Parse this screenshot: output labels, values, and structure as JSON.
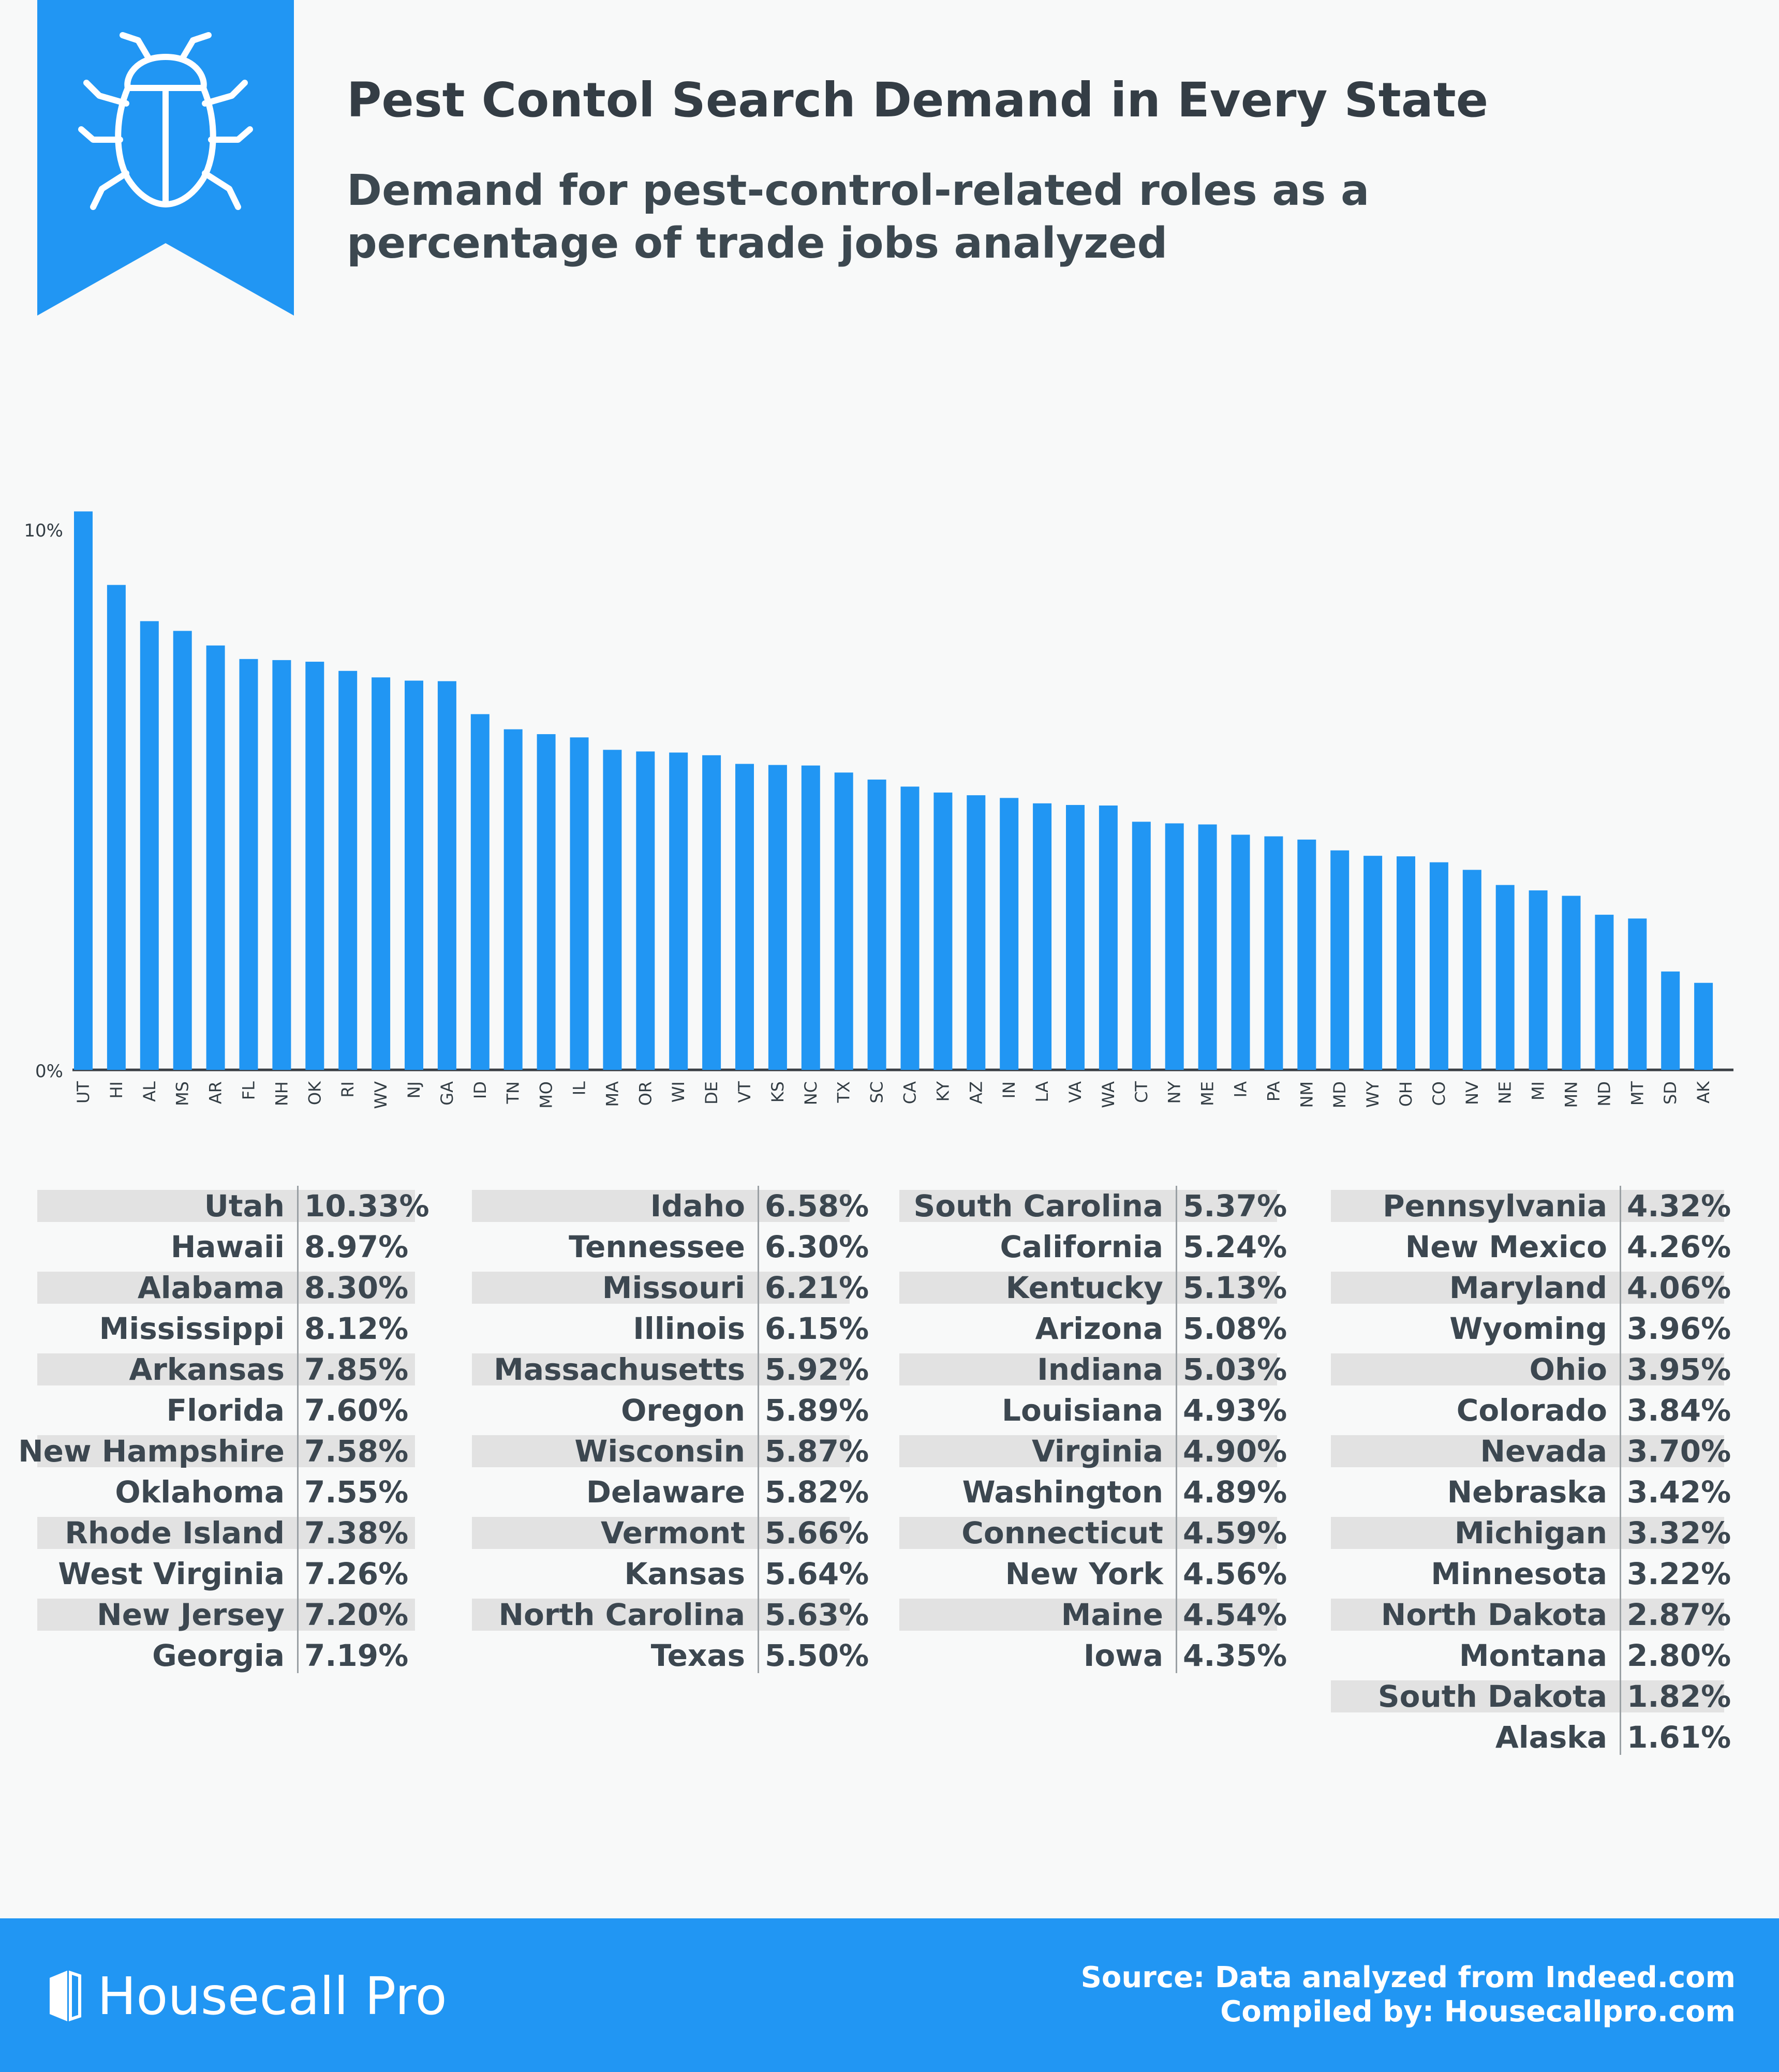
{
  "header": {
    "title": "Pest Contol Search Demand in Every State",
    "subtitle": "Demand for pest-control-related roles as a percentage of trade jobs analyzed",
    "icon": "bug-icon",
    "accent_color": "#2196f3"
  },
  "chart_data": {
    "type": "bar",
    "title": "Pest Contol Search Demand in Every State",
    "xlabel": "",
    "ylabel": "",
    "ylim": [
      0,
      10
    ],
    "yticks": [
      "0%",
      "10%"
    ],
    "bar_color": "#2196f3",
    "categories": [
      "UT",
      "HI",
      "AL",
      "MS",
      "AR",
      "FL",
      "NH",
      "OK",
      "RI",
      "WV",
      "NJ",
      "GA",
      "ID",
      "TN",
      "MO",
      "IL",
      "MA",
      "OR",
      "WI",
      "DE",
      "VT",
      "KS",
      "NC",
      "TX",
      "SC",
      "CA",
      "KY",
      "AZ",
      "IN",
      "LA",
      "VA",
      "WA",
      "CT",
      "NY",
      "ME",
      "IA",
      "PA",
      "NM",
      "MD",
      "WY",
      "OH",
      "CO",
      "NV",
      "NE",
      "MI",
      "MN",
      "ND",
      "MT",
      "SD",
      "AK"
    ],
    "values": [
      10.33,
      8.97,
      8.3,
      8.12,
      7.85,
      7.6,
      7.58,
      7.55,
      7.38,
      7.26,
      7.2,
      7.19,
      6.58,
      6.3,
      6.21,
      6.15,
      5.92,
      5.89,
      5.87,
      5.82,
      5.66,
      5.64,
      5.63,
      5.5,
      5.37,
      5.24,
      5.13,
      5.08,
      5.03,
      4.93,
      4.9,
      4.89,
      4.59,
      4.56,
      4.54,
      4.35,
      4.32,
      4.26,
      4.06,
      3.96,
      3.95,
      3.84,
      3.7,
      3.42,
      3.32,
      3.22,
      2.87,
      2.8,
      1.82,
      1.61
    ]
  },
  "table": {
    "columns": [
      [
        {
          "state": "Utah",
          "pct": "10.33%"
        },
        {
          "state": "Hawaii",
          "pct": "8.97%"
        },
        {
          "state": "Alabama",
          "pct": "8.30%"
        },
        {
          "state": "Mississippi",
          "pct": "8.12%"
        },
        {
          "state": "Arkansas",
          "pct": "7.85%"
        },
        {
          "state": "Florida",
          "pct": "7.60%"
        },
        {
          "state": "New Hampshire",
          "pct": "7.58%"
        },
        {
          "state": "Oklahoma",
          "pct": "7.55%"
        },
        {
          "state": "Rhode Island",
          "pct": "7.38%"
        },
        {
          "state": "West Virginia",
          "pct": "7.26%"
        },
        {
          "state": "New Jersey",
          "pct": "7.20%"
        },
        {
          "state": "Georgia",
          "pct": "7.19%"
        }
      ],
      [
        {
          "state": "Idaho",
          "pct": "6.58%"
        },
        {
          "state": "Tennessee",
          "pct": "6.30%"
        },
        {
          "state": "Missouri",
          "pct": "6.21%"
        },
        {
          "state": "Illinois",
          "pct": "6.15%"
        },
        {
          "state": "Massachusetts",
          "pct": "5.92%"
        },
        {
          "state": "Oregon",
          "pct": "5.89%"
        },
        {
          "state": "Wisconsin",
          "pct": "5.87%"
        },
        {
          "state": "Delaware",
          "pct": "5.82%"
        },
        {
          "state": "Vermont",
          "pct": "5.66%"
        },
        {
          "state": "Kansas",
          "pct": "5.64%"
        },
        {
          "state": "North Carolina",
          "pct": "5.63%"
        },
        {
          "state": "Texas",
          "pct": "5.50%"
        }
      ],
      [
        {
          "state": "South Carolina",
          "pct": "5.37%"
        },
        {
          "state": "California",
          "pct": "5.24%"
        },
        {
          "state": "Kentucky",
          "pct": "5.13%"
        },
        {
          "state": "Arizona",
          "pct": "5.08%"
        },
        {
          "state": "Indiana",
          "pct": "5.03%"
        },
        {
          "state": "Louisiana",
          "pct": "4.93%"
        },
        {
          "state": "Virginia",
          "pct": "4.90%"
        },
        {
          "state": "Washington",
          "pct": "4.89%"
        },
        {
          "state": "Connecticut",
          "pct": "4.59%"
        },
        {
          "state": "New York",
          "pct": "4.56%"
        },
        {
          "state": "Maine",
          "pct": "4.54%"
        },
        {
          "state": "Iowa",
          "pct": "4.35%"
        }
      ],
      [
        {
          "state": "Pennsylvania",
          "pct": "4.32%"
        },
        {
          "state": "New Mexico",
          "pct": "4.26%"
        },
        {
          "state": "Maryland",
          "pct": "4.06%"
        },
        {
          "state": "Wyoming",
          "pct": "3.96%"
        },
        {
          "state": "Ohio",
          "pct": "3.95%"
        },
        {
          "state": "Colorado",
          "pct": "3.84%"
        },
        {
          "state": "Nevada",
          "pct": "3.70%"
        },
        {
          "state": "Nebraska",
          "pct": "3.42%"
        },
        {
          "state": "Michigan",
          "pct": "3.32%"
        },
        {
          "state": "Minnesota",
          "pct": "3.22%"
        },
        {
          "state": "North Dakota",
          "pct": "2.87%"
        },
        {
          "state": "Montana",
          "pct": "2.80%"
        },
        {
          "state": "South Dakota",
          "pct": "1.82%"
        },
        {
          "state": "Alaska",
          "pct": "1.61%"
        }
      ]
    ],
    "stripe_color": "#e2e2e2"
  },
  "footer": {
    "brand": "Housecall Pro",
    "source_line": "Source: Data analyzed from Indeed.com",
    "compiled_line": "Compiled by: Housecallpro.com",
    "background_color": "#2196f3"
  }
}
